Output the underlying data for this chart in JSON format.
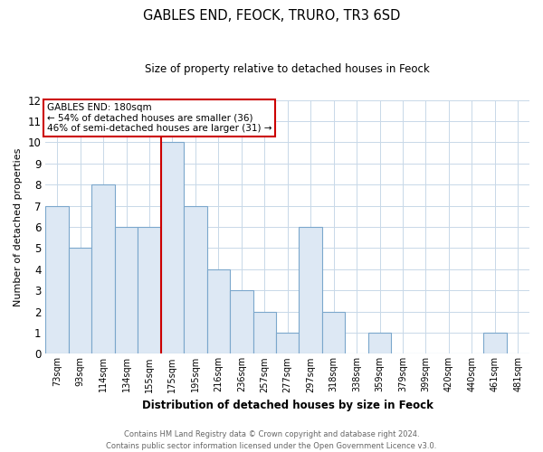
{
  "title": "GABLES END, FEOCK, TRURO, TR3 6SD",
  "subtitle": "Size of property relative to detached houses in Feock",
  "xlabel": "Distribution of detached houses by size in Feock",
  "ylabel": "Number of detached properties",
  "bin_labels": [
    "73sqm",
    "93sqm",
    "114sqm",
    "134sqm",
    "155sqm",
    "175sqm",
    "195sqm",
    "216sqm",
    "236sqm",
    "257sqm",
    "277sqm",
    "297sqm",
    "318sqm",
    "338sqm",
    "359sqm",
    "379sqm",
    "399sqm",
    "420sqm",
    "440sqm",
    "461sqm",
    "481sqm"
  ],
  "bar_heights": [
    7,
    5,
    8,
    6,
    6,
    10,
    7,
    4,
    3,
    2,
    1,
    6,
    2,
    0,
    1,
    0,
    0,
    0,
    0,
    1,
    0
  ],
  "bar_color": "#dde8f4",
  "bar_edge_color": "#7ba7cc",
  "red_line_bin": 5,
  "annotation_line1": "GABLES END: 180sqm",
  "annotation_line2": "← 54% of detached houses are smaller (36)",
  "annotation_line3": "46% of semi-detached houses are larger (31) →",
  "annotation_box_color": "#ffffff",
  "annotation_box_edge": "#cc0000",
  "ylim": [
    0,
    12
  ],
  "yticks": [
    0,
    1,
    2,
    3,
    4,
    5,
    6,
    7,
    8,
    9,
    10,
    11,
    12
  ],
  "footer_line1": "Contains HM Land Registry data © Crown copyright and database right 2024.",
  "footer_line2": "Contains public sector information licensed under the Open Government Licence v3.0.",
  "background_color": "#ffffff",
  "grid_color": "#c8d8e8"
}
